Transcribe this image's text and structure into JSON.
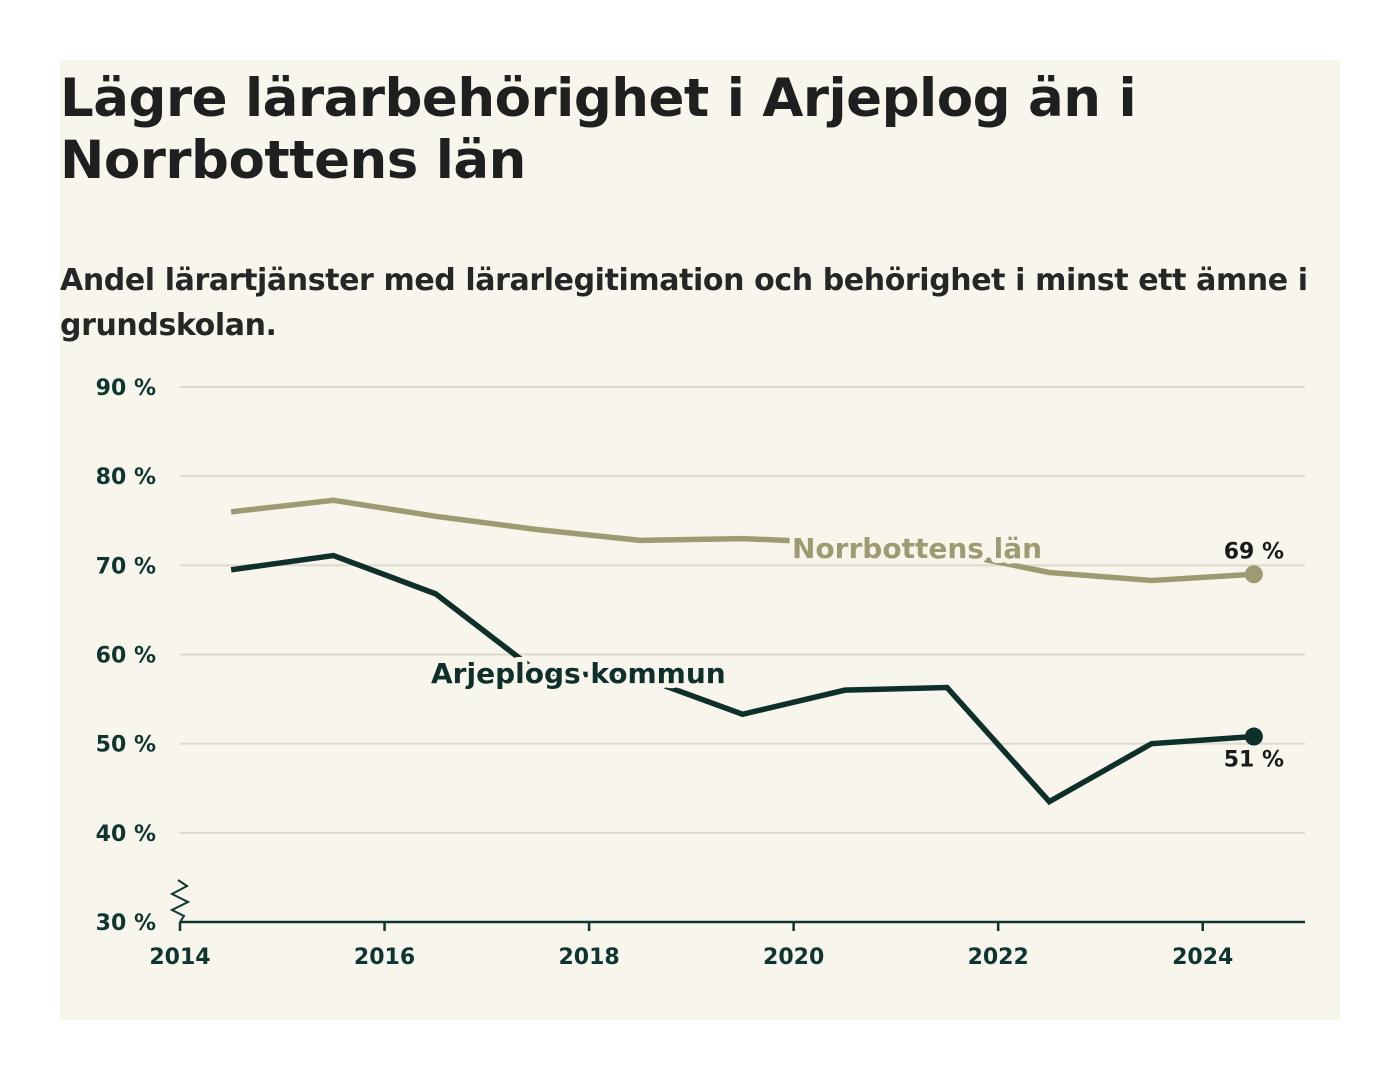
{
  "title": "Lägre lärarbehörighet i Arjeplog än i Norrbottens län",
  "subtitle": "Andel lärartjänster med lärarlegitimation och behörighet i minst ett ämne i grundskolan.",
  "chart_data": {
    "type": "line",
    "x": [
      2014.5,
      2015.5,
      2016.5,
      2017.5,
      2018.5,
      2019.5,
      2020.5,
      2021.5,
      2022.5,
      2023.5,
      2024.5
    ],
    "series": [
      {
        "name": "Norrbottens län",
        "color": "#9e9b72",
        "values": [
          76,
          77.3,
          75.5,
          74,
          72.8,
          73,
          72.5,
          71.5,
          69.2,
          68.3,
          69
        ],
        "end_label": "69 %"
      },
      {
        "name": "Arjeplogs kommun",
        "color": "#0f2f2a",
        "values": [
          69.5,
          71.1,
          66.8,
          58,
          57.5,
          53.3,
          56,
          56.3,
          43.5,
          50,
          50.8
        ],
        "end_label": "51 %"
      }
    ],
    "x_ticks": [
      2014,
      2016,
      2018,
      2020,
      2022,
      2024
    ],
    "x_tick_labels": [
      "2014",
      "2016",
      "2018",
      "2020",
      "2022",
      "2024"
    ],
    "xlim": [
      2014,
      2025
    ],
    "y_ticks": [
      30,
      40,
      50,
      60,
      70,
      80,
      90
    ],
    "y_tick_labels": [
      "30 %",
      "40 %",
      "50 %",
      "60 %",
      "70 %",
      "80 %",
      "90 %"
    ],
    "ylim": [
      30,
      90
    ],
    "grid": true,
    "axis_break": true
  }
}
